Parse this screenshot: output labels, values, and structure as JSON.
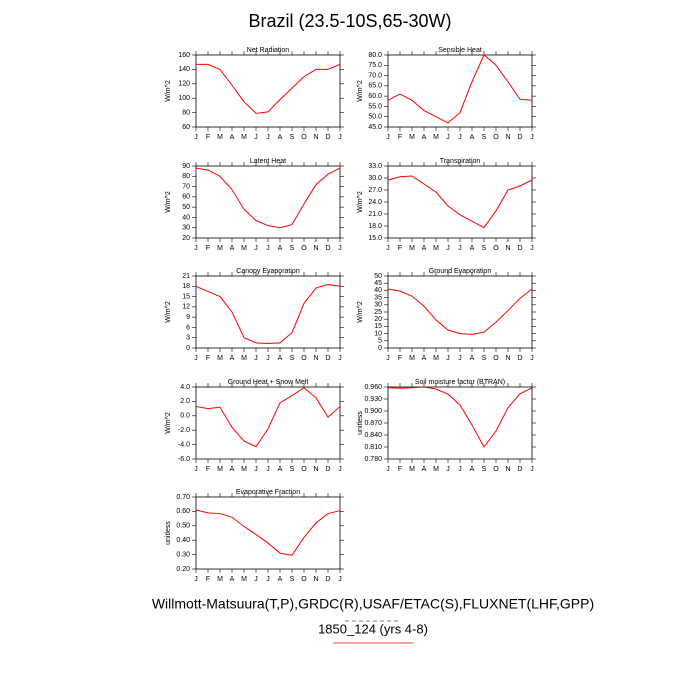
{
  "title": "Brazil (23.5-10S,65-30W)",
  "footer": [
    "Willmott-Matsuura(T,P),GRDC(R),USAF/ETAC(S),FLUXNET(LHF,GPP)",
    "1850_124 (yrs 4-8)"
  ],
  "chart_data": [
    {
      "type": "line",
      "title": "Net Radiation",
      "y_label": "W/m^2",
      "color": "#ff0000",
      "categories": [
        "J",
        "F",
        "M",
        "A",
        "M",
        "J",
        "J",
        "A",
        "S",
        "O",
        "N",
        "D",
        "J"
      ],
      "values": [
        147,
        147,
        140,
        118,
        95,
        79,
        81,
        98,
        114,
        130,
        140,
        140,
        147
      ],
      "ylim": [
        60,
        160
      ],
      "yticks": [
        60,
        80,
        100,
        120,
        140,
        160
      ]
    },
    {
      "type": "line",
      "title": "Sensible Heat",
      "y_label": "W/m^2",
      "color": "#ff0000",
      "categories": [
        "J",
        "F",
        "M",
        "A",
        "M",
        "J",
        "J",
        "A",
        "S",
        "O",
        "N",
        "D",
        "J"
      ],
      "values": [
        58,
        61,
        58,
        53,
        50,
        47,
        52,
        67,
        80,
        75,
        67,
        58.5,
        58
      ],
      "ylim": [
        45,
        80
      ],
      "yticks": [
        {
          "value": 45,
          "label": "45.0"
        },
        {
          "value": 50,
          "label": "50.0"
        },
        {
          "value": 55,
          "label": "55.0"
        },
        {
          "value": 60,
          "label": "60.0"
        },
        {
          "value": 65,
          "label": "65.0"
        },
        {
          "value": 70,
          "label": "70.0"
        },
        {
          "value": 75,
          "label": "75.0"
        },
        {
          "value": 80,
          "label": "80.0"
        }
      ]
    },
    {
      "type": "line",
      "title": "Latent Heat",
      "y_label": "W/m^2",
      "color": "#ff0000",
      "categories": [
        "J",
        "F",
        "M",
        "A",
        "M",
        "J",
        "J",
        "A",
        "S",
        "O",
        "N",
        "D",
        "J"
      ],
      "values": [
        88,
        86,
        80,
        67,
        48,
        37,
        32,
        30,
        33,
        53,
        72,
        82,
        88
      ],
      "ylim": [
        20,
        90
      ],
      "yticks": [
        20,
        30,
        40,
        50,
        60,
        70,
        80,
        90
      ]
    },
    {
      "type": "line",
      "title": "Transpiration",
      "y_label": "W/m^2",
      "color": "#ff0000",
      "categories": [
        "J",
        "F",
        "M",
        "A",
        "M",
        "J",
        "J",
        "A",
        "S",
        "O",
        "N",
        "D",
        "J"
      ],
      "values": [
        29.5,
        30.3,
        30.5,
        28.5,
        26.5,
        23,
        20.8,
        19.2,
        17.6,
        21.8,
        27,
        28,
        29.5
      ],
      "ylim": [
        15,
        33
      ],
      "yticks": [
        {
          "value": 15,
          "label": "15.0"
        },
        {
          "value": 18,
          "label": "18.0"
        },
        {
          "value": 21,
          "label": "21.0"
        },
        {
          "value": 24,
          "label": "24.0"
        },
        {
          "value": 27,
          "label": "27.0"
        },
        {
          "value": 30,
          "label": "30.0"
        },
        {
          "value": 33,
          "label": "33.0"
        }
      ]
    },
    {
      "type": "line",
      "title": "Canopy Evaporation",
      "y_label": "W/m^2",
      "color": "#ff0000",
      "categories": [
        "J",
        "F",
        "M",
        "A",
        "M",
        "J",
        "J",
        "A",
        "S",
        "O",
        "N",
        "D",
        "J"
      ],
      "values": [
        18,
        16.5,
        15,
        10.5,
        3,
        1.5,
        1.3,
        1.5,
        4.5,
        13,
        17.5,
        18.5,
        18
      ],
      "ylim": [
        0,
        21
      ],
      "yticks": [
        0,
        3,
        6,
        9,
        12,
        15,
        18,
        21
      ]
    },
    {
      "type": "line",
      "title": "Ground Evaporation",
      "y_label": "W/m^2",
      "color": "#ff0000",
      "categories": [
        "J",
        "F",
        "M",
        "A",
        "M",
        "J",
        "J",
        "A",
        "S",
        "O",
        "N",
        "D",
        "J"
      ],
      "values": [
        41,
        39.5,
        36,
        29,
        19.5,
        12.5,
        10,
        9.5,
        11,
        18,
        26,
        34.5,
        41
      ],
      "ylim": [
        0,
        50
      ],
      "yticks": [
        0,
        5,
        10,
        15,
        20,
        25,
        30,
        35,
        40,
        45,
        50
      ]
    },
    {
      "type": "line",
      "title": "Ground Heat + Snow Melt",
      "y_label": "W/m^2",
      "color": "#ff0000",
      "categories": [
        "J",
        "F",
        "M",
        "A",
        "M",
        "J",
        "J",
        "A",
        "S",
        "O",
        "N",
        "D",
        "J"
      ],
      "values": [
        1.3,
        1.0,
        1.2,
        -1.6,
        -3.5,
        -4.3,
        -1.8,
        1.8,
        2.8,
        3.9,
        2.5,
        -0.2,
        1.3
      ],
      "ylim": [
        -6,
        4
      ],
      "yticks": [
        {
          "value": -6,
          "label": "-6.0"
        },
        {
          "value": -4,
          "label": "-4.0"
        },
        {
          "value": -2,
          "label": "-2.0"
        },
        {
          "value": 0,
          "label": "0.0"
        },
        {
          "value": 2,
          "label": "2.0"
        },
        {
          "value": 4,
          "label": "4.0"
        }
      ]
    },
    {
      "type": "line",
      "title": "Soil moisture factor (BTRAN)",
      "y_label": "unitless",
      "color": "#ff0000",
      "categories": [
        "J",
        "F",
        "M",
        "A",
        "M",
        "J",
        "J",
        "A",
        "S",
        "O",
        "N",
        "D",
        "J"
      ],
      "values": [
        0.958,
        0.957,
        0.958,
        0.96,
        0.955,
        0.942,
        0.915,
        0.865,
        0.81,
        0.85,
        0.908,
        0.943,
        0.958
      ],
      "ylim": [
        0.78,
        0.96
      ],
      "yticks": [
        {
          "value": 0.78,
          "label": "0.780"
        },
        {
          "value": 0.81,
          "label": "0.810"
        },
        {
          "value": 0.84,
          "label": "0.840"
        },
        {
          "value": 0.87,
          "label": "0.870"
        },
        {
          "value": 0.9,
          "label": "0.900"
        },
        {
          "value": 0.93,
          "label": "0.930"
        },
        {
          "value": 0.96,
          "label": "0.960"
        }
      ]
    },
    {
      "type": "line",
      "title": "Evaporative Fraction",
      "y_label": "unitless",
      "color": "#ff0000",
      "categories": [
        "J",
        "F",
        "M",
        "A",
        "M",
        "J",
        "J",
        "A",
        "S",
        "O",
        "N",
        "D",
        "J"
      ],
      "values": [
        0.61,
        0.59,
        0.585,
        0.56,
        0.495,
        0.44,
        0.38,
        0.31,
        0.295,
        0.42,
        0.52,
        0.585,
        0.605
      ],
      "ylim": [
        0.2,
        0.7
      ],
      "yticks": [
        {
          "value": 0.2,
          "label": "0.20"
        },
        {
          "value": 0.3,
          "label": "0.30"
        },
        {
          "value": 0.4,
          "label": "0.40"
        },
        {
          "value": 0.5,
          "label": "0.50"
        },
        {
          "value": 0.6,
          "label": "0.60"
        },
        {
          "value": 0.7,
          "label": "0.70"
        }
      ]
    }
  ]
}
